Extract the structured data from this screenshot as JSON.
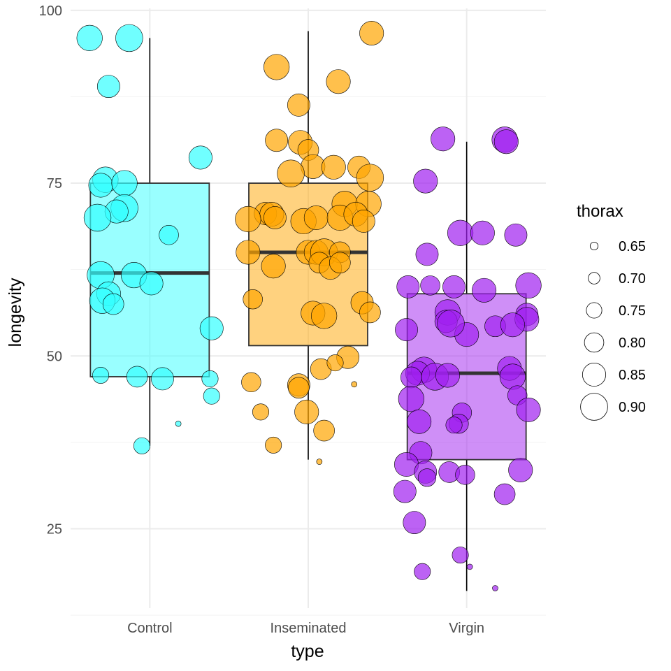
{
  "chart_data": {
    "type": "boxplot-jitter",
    "xlabel": "type",
    "ylabel": "longevity",
    "categories": [
      "Control",
      "Inseminated",
      "Virgin"
    ],
    "ylim": [
      11.5,
      101.5
    ],
    "yticks": [
      25,
      50,
      75,
      100
    ],
    "grid": true,
    "legend_position": "right",
    "colors": {
      "Control": "#33ffff",
      "Inseminated": "#ffa500",
      "Virgin": "#a020f0"
    },
    "boxes": [
      {
        "category": "Control",
        "q1": 47,
        "median": 62,
        "q3": 75,
        "whisker_low": 37,
        "whisker_high": 96
      },
      {
        "category": "Inseminated",
        "q1": 51.5,
        "median": 65,
        "q3": 75,
        "whisker_low": 35,
        "whisker_high": 97
      },
      {
        "category": "Virgin",
        "q1": 35,
        "median": 47.5,
        "q3": 59,
        "whisker_low": 16,
        "whisker_high": 81
      }
    ],
    "size_legend": {
      "title": "thorax",
      "labels": [
        "0.65",
        "0.70",
        "0.75",
        "0.80",
        "0.85",
        "0.90"
      ],
      "values": [
        0.65,
        0.7,
        0.75,
        0.8,
        0.85,
        0.9
      ]
    },
    "points": {
      "Control": [
        [
          -0.38,
          96,
          0.88
        ],
        [
          -0.13,
          96,
          0.9
        ],
        [
          -0.26,
          89,
          0.84
        ],
        [
          0.32,
          78.7,
          0.85
        ],
        [
          -0.28,
          75.5,
          0.88
        ],
        [
          -0.31,
          74.7,
          0.86
        ],
        [
          -0.16,
          75,
          0.88
        ],
        [
          -0.16,
          71.4,
          0.9
        ],
        [
          -0.21,
          70.9,
          0.85
        ],
        [
          -0.33,
          70,
          0.9
        ],
        [
          0.12,
          67.5,
          0.8
        ],
        [
          -0.31,
          61.7,
          0.9
        ],
        [
          -0.1,
          61.7,
          0.88
        ],
        [
          0.01,
          60.5,
          0.85
        ],
        [
          -0.26,
          59,
          0.86
        ],
        [
          -0.3,
          58,
          0.88
        ],
        [
          -0.23,
          57.5,
          0.82
        ],
        [
          0.39,
          54,
          0.85
        ],
        [
          -0.31,
          47.2,
          0.76
        ],
        [
          -0.08,
          47,
          0.82
        ],
        [
          0.08,
          46.7,
          0.84
        ],
        [
          0.38,
          46.7,
          0.76
        ],
        [
          0.39,
          44.2,
          0.76
        ],
        [
          0.18,
          40.2,
          0.62
        ],
        [
          -0.05,
          37,
          0.76
        ]
      ],
      "Inseminated": [
        [
          0.4,
          96.7,
          0.86
        ],
        [
          -0.2,
          91.8,
          0.88
        ],
        [
          0.19,
          89.7,
          0.86
        ],
        [
          -0.06,
          86.3,
          0.84
        ],
        [
          -0.2,
          81.2,
          0.84
        ],
        [
          -0.05,
          80.9,
          0.86
        ],
        [
          0,
          79.8,
          0.82
        ],
        [
          0.03,
          77.4,
          0.86
        ],
        [
          0.16,
          77.3,
          0.86
        ],
        [
          0.32,
          77.3,
          0.84
        ],
        [
          -0.11,
          76.4,
          0.9
        ],
        [
          0.39,
          75.8,
          0.9
        ],
        [
          0.23,
          72,
          0.88
        ],
        [
          0.38,
          72,
          0.88
        ],
        [
          -0.27,
          70.6,
          0.84
        ],
        [
          -0.23,
          70.5,
          0.86
        ],
        [
          -0.38,
          69.8,
          0.88
        ],
        [
          -0.21,
          70,
          0.84
        ],
        [
          -0.03,
          69.5,
          0.88
        ],
        [
          0.05,
          70,
          0.86
        ],
        [
          0.2,
          70,
          0.88
        ],
        [
          0.3,
          70.5,
          0.86
        ],
        [
          0.35,
          69.5,
          0.84
        ],
        [
          -0.38,
          65,
          0.86
        ],
        [
          0,
          65,
          0.86
        ],
        [
          0.05,
          65,
          0.86
        ],
        [
          0.1,
          65,
          0.9
        ],
        [
          0.2,
          65,
          0.82
        ],
        [
          -0.22,
          63,
          0.86
        ],
        [
          0.07,
          63.5,
          0.82
        ],
        [
          0.14,
          62.7,
          0.84
        ],
        [
          0.2,
          63.5,
          0.82
        ],
        [
          -0.35,
          58.2,
          0.8
        ],
        [
          0.34,
          57.7,
          0.84
        ],
        [
          0.39,
          56.3,
          0.82
        ],
        [
          0.03,
          56.2,
          0.86
        ],
        [
          0.1,
          55.8,
          0.88
        ],
        [
          0.25,
          49.8,
          0.84
        ],
        [
          0.08,
          48.1,
          0.82
        ],
        [
          0.17,
          49,
          0.76
        ],
        [
          -0.36,
          46.2,
          0.8
        ],
        [
          -0.06,
          45.8,
          0.84
        ],
        [
          -0.06,
          45.4,
          0.82
        ],
        [
          0.29,
          45.9,
          0.62
        ],
        [
          -0.3,
          41.9,
          0.76
        ],
        [
          -0.01,
          41.9,
          0.86
        ],
        [
          0.1,
          39.2,
          0.82
        ],
        [
          -0.22,
          37.1,
          0.76
        ],
        [
          0.07,
          34.7,
          0.62
        ]
      ],
      "Virgin": [
        [
          -0.15,
          81.4,
          0.86
        ],
        [
          0.24,
          81.3,
          0.88
        ],
        [
          0.25,
          81,
          0.86
        ],
        [
          -0.26,
          75.3,
          0.86
        ],
        [
          -0.04,
          67.8,
          0.88
        ],
        [
          0.1,
          67.8,
          0.86
        ],
        [
          0.31,
          67.5,
          0.84
        ],
        [
          -0.25,
          64.7,
          0.84
        ],
        [
          -0.37,
          60,
          0.84
        ],
        [
          -0.23,
          60.2,
          0.8
        ],
        [
          -0.08,
          60,
          0.84
        ],
        [
          0.11,
          59.5,
          0.86
        ],
        [
          0.39,
          60.2,
          0.88
        ],
        [
          -0.12,
          56.3,
          0.88
        ],
        [
          -0.13,
          55,
          0.84
        ],
        [
          0.38,
          56,
          0.84
        ],
        [
          0.38,
          55.3,
          0.86
        ],
        [
          -0.38,
          53.8,
          0.84
        ],
        [
          0,
          53.1,
          0.86
        ],
        [
          0.18,
          54.3,
          0.82
        ],
        [
          0.29,
          54.5,
          0.86
        ],
        [
          -0.1,
          54.7,
          0.9
        ],
        [
          -0.27,
          48,
          0.88
        ],
        [
          -0.31,
          47.5,
          0.86
        ],
        [
          -0.35,
          46.9,
          0.82
        ],
        [
          -0.2,
          47,
          0.9
        ],
        [
          -0.12,
          47.2,
          0.86
        ],
        [
          0.27,
          48.2,
          0.86
        ],
        [
          0.29,
          47,
          0.88
        ],
        [
          0.32,
          44.3,
          0.8
        ],
        [
          -0.35,
          43.8,
          0.88
        ],
        [
          0.39,
          42.2,
          0.86
        ],
        [
          -0.03,
          41.8,
          0.8
        ],
        [
          -0.05,
          40.2,
          0.8
        ],
        [
          -0.08,
          40,
          0.76
        ],
        [
          -0.3,
          40.5,
          0.86
        ],
        [
          -0.29,
          36,
          0.84
        ],
        [
          -0.38,
          34.3,
          0.86
        ],
        [
          -0.26,
          33.2,
          0.84
        ],
        [
          -0.25,
          32.4,
          0.78
        ],
        [
          -0.11,
          33.2,
          0.82
        ],
        [
          -0.01,
          32.8,
          0.8
        ],
        [
          0.34,
          33.5,
          0.86
        ],
        [
          -0.39,
          30.4,
          0.84
        ],
        [
          0.24,
          30,
          0.82
        ],
        [
          -0.33,
          25.9,
          0.84
        ],
        [
          -0.04,
          21.2,
          0.76
        ],
        [
          -0.28,
          18.8,
          0.76
        ],
        [
          0.02,
          19.5,
          0.62
        ],
        [
          0.18,
          16.4,
          0.62
        ]
      ]
    }
  }
}
